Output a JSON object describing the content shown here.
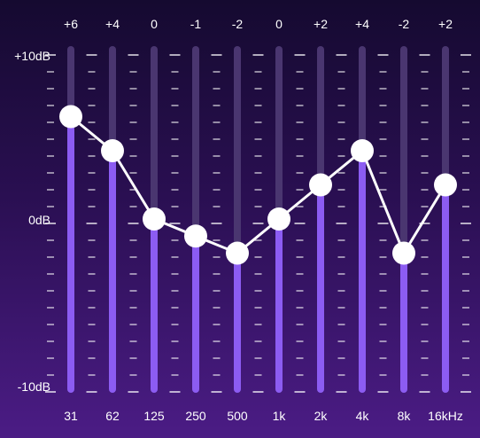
{
  "equalizer": {
    "scale": {
      "max": 10,
      "min": -10,
      "unit": "dB"
    },
    "scale_labels": {
      "top": "+10dB",
      "mid": "0dB",
      "bottom": "-10dB"
    },
    "bands": [
      {
        "freq": "31",
        "gain_label": "+6",
        "gain": 6
      },
      {
        "freq": "62",
        "gain_label": "+4",
        "gain": 4
      },
      {
        "freq": "125",
        "gain_label": "0",
        "gain": 0
      },
      {
        "freq": "250",
        "gain_label": "-1",
        "gain": -1
      },
      {
        "freq": "500",
        "gain_label": "-2",
        "gain": -2
      },
      {
        "freq": "1k",
        "gain_label": "0",
        "gain": 0
      },
      {
        "freq": "2k",
        "gain_label": "+2",
        "gain": 2
      },
      {
        "freq": "4k",
        "gain_label": "+4",
        "gain": 4
      },
      {
        "freq": "8k",
        "gain_label": "-2",
        "gain": -2
      },
      {
        "freq": "16kHz",
        "gain_label": "+2",
        "gain": 2
      }
    ],
    "colors": {
      "track": "#4a3670",
      "fill": "#8c5cf2",
      "knob": "#ffffff",
      "curve": "#ffffff",
      "tick": "#ffffff"
    }
  }
}
